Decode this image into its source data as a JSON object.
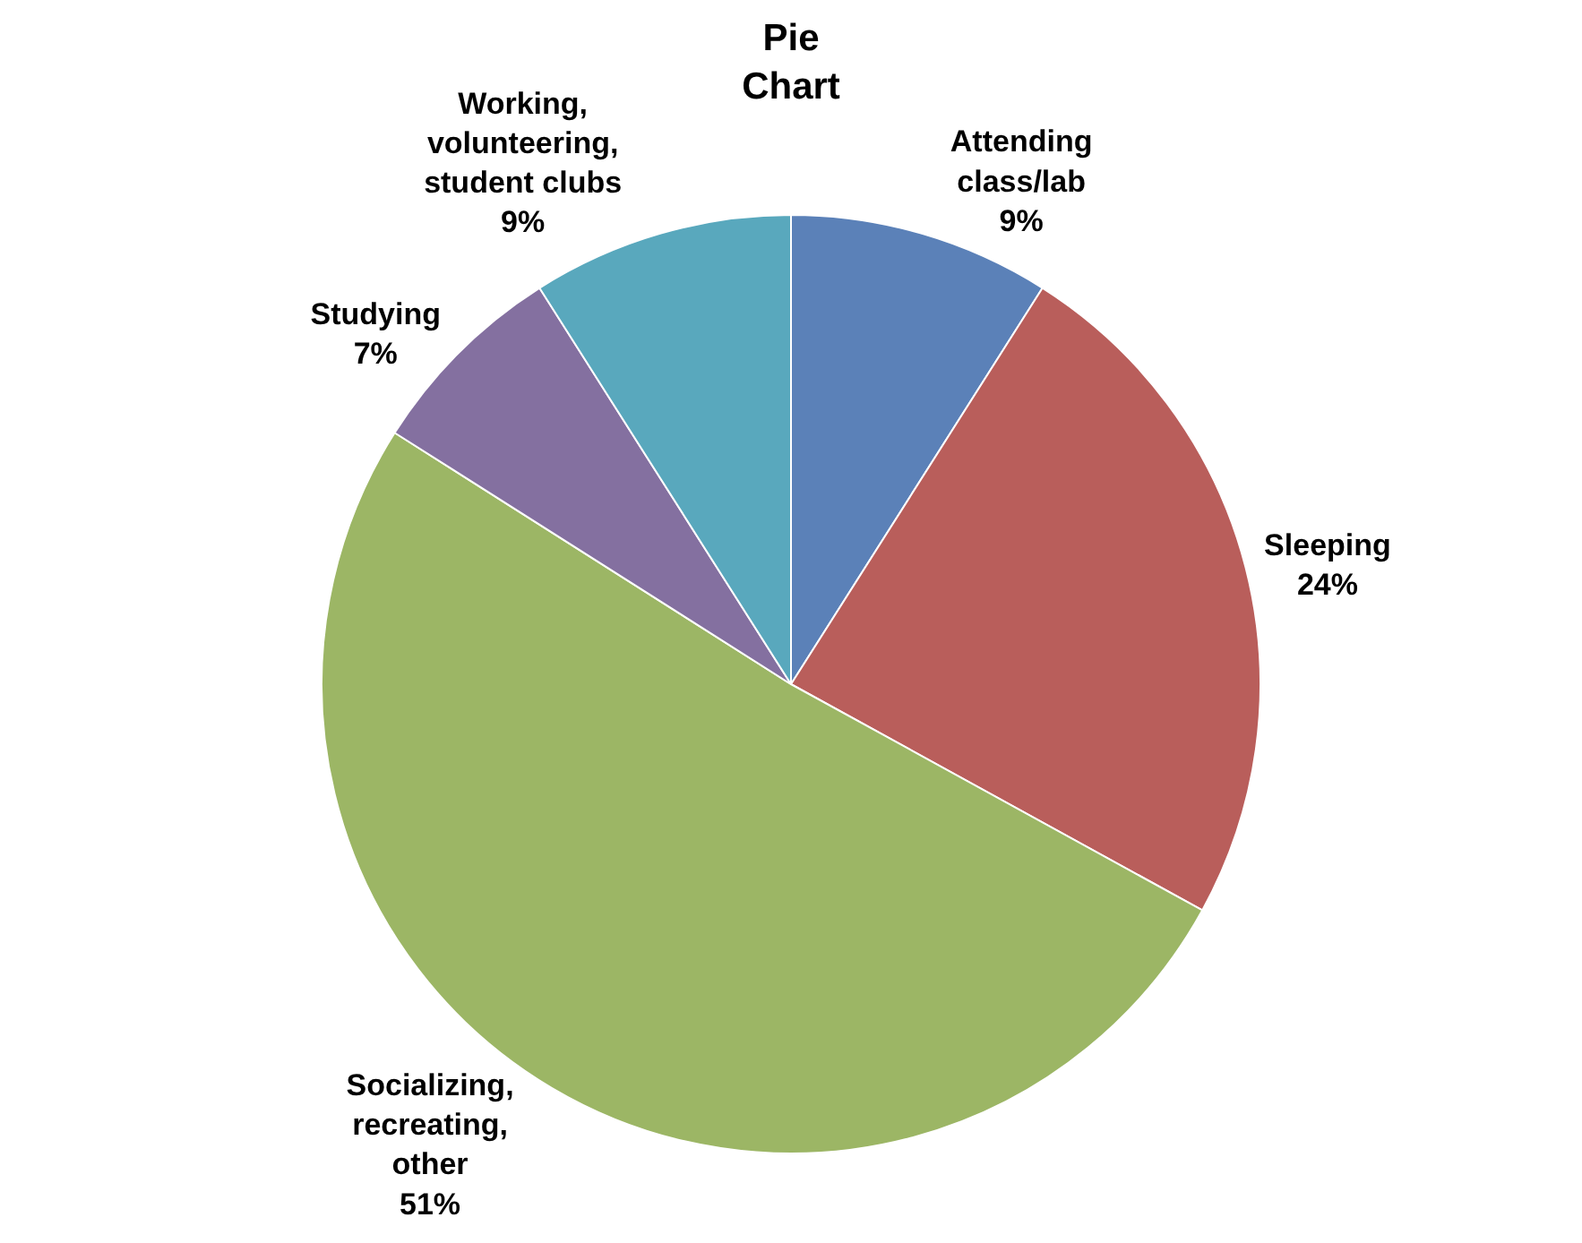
{
  "chart_data": {
    "type": "pie",
    "title": "Pie Chart",
    "categories": [
      "Attending class/lab",
      "Sleeping",
      "Socializing, recreating, other",
      "Studying",
      "Working, volunteering, student clubs"
    ],
    "values": [
      9,
      24,
      51,
      7,
      9
    ],
    "value_labels": [
      "9%",
      "24%",
      "51%",
      "7%",
      "9%"
    ],
    "colors": [
      "#5b81b8",
      "#b95e5b",
      "#9cb665",
      "#8470a0",
      "#59a8bd"
    ],
    "legend": false
  }
}
